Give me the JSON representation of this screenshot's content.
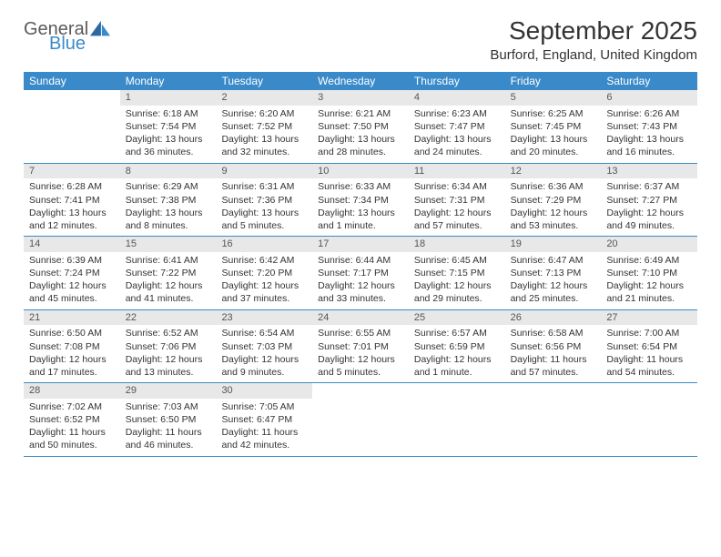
{
  "logo": {
    "word1": "General",
    "word2": "Blue"
  },
  "title": "September 2025",
  "location": "Burford, England, United Kingdom",
  "colors": {
    "header_bar": "#3a8ac9",
    "daynum_bg": "#e8e8e8",
    "text": "#333333",
    "logo_gray": "#5a5a5a",
    "logo_blue": "#3a8ac9"
  },
  "weekdays": [
    "Sunday",
    "Monday",
    "Tuesday",
    "Wednesday",
    "Thursday",
    "Friday",
    "Saturday"
  ],
  "weeks": [
    [
      {
        "n": "",
        "sr": "",
        "ss": "",
        "dl": ""
      },
      {
        "n": "1",
        "sr": "Sunrise: 6:18 AM",
        "ss": "Sunset: 7:54 PM",
        "dl": "Daylight: 13 hours and 36 minutes."
      },
      {
        "n": "2",
        "sr": "Sunrise: 6:20 AM",
        "ss": "Sunset: 7:52 PM",
        "dl": "Daylight: 13 hours and 32 minutes."
      },
      {
        "n": "3",
        "sr": "Sunrise: 6:21 AM",
        "ss": "Sunset: 7:50 PM",
        "dl": "Daylight: 13 hours and 28 minutes."
      },
      {
        "n": "4",
        "sr": "Sunrise: 6:23 AM",
        "ss": "Sunset: 7:47 PM",
        "dl": "Daylight: 13 hours and 24 minutes."
      },
      {
        "n": "5",
        "sr": "Sunrise: 6:25 AM",
        "ss": "Sunset: 7:45 PM",
        "dl": "Daylight: 13 hours and 20 minutes."
      },
      {
        "n": "6",
        "sr": "Sunrise: 6:26 AM",
        "ss": "Sunset: 7:43 PM",
        "dl": "Daylight: 13 hours and 16 minutes."
      }
    ],
    [
      {
        "n": "7",
        "sr": "Sunrise: 6:28 AM",
        "ss": "Sunset: 7:41 PM",
        "dl": "Daylight: 13 hours and 12 minutes."
      },
      {
        "n": "8",
        "sr": "Sunrise: 6:29 AM",
        "ss": "Sunset: 7:38 PM",
        "dl": "Daylight: 13 hours and 8 minutes."
      },
      {
        "n": "9",
        "sr": "Sunrise: 6:31 AM",
        "ss": "Sunset: 7:36 PM",
        "dl": "Daylight: 13 hours and 5 minutes."
      },
      {
        "n": "10",
        "sr": "Sunrise: 6:33 AM",
        "ss": "Sunset: 7:34 PM",
        "dl": "Daylight: 13 hours and 1 minute."
      },
      {
        "n": "11",
        "sr": "Sunrise: 6:34 AM",
        "ss": "Sunset: 7:31 PM",
        "dl": "Daylight: 12 hours and 57 minutes."
      },
      {
        "n": "12",
        "sr": "Sunrise: 6:36 AM",
        "ss": "Sunset: 7:29 PM",
        "dl": "Daylight: 12 hours and 53 minutes."
      },
      {
        "n": "13",
        "sr": "Sunrise: 6:37 AM",
        "ss": "Sunset: 7:27 PM",
        "dl": "Daylight: 12 hours and 49 minutes."
      }
    ],
    [
      {
        "n": "14",
        "sr": "Sunrise: 6:39 AM",
        "ss": "Sunset: 7:24 PM",
        "dl": "Daylight: 12 hours and 45 minutes."
      },
      {
        "n": "15",
        "sr": "Sunrise: 6:41 AM",
        "ss": "Sunset: 7:22 PM",
        "dl": "Daylight: 12 hours and 41 minutes."
      },
      {
        "n": "16",
        "sr": "Sunrise: 6:42 AM",
        "ss": "Sunset: 7:20 PM",
        "dl": "Daylight: 12 hours and 37 minutes."
      },
      {
        "n": "17",
        "sr": "Sunrise: 6:44 AM",
        "ss": "Sunset: 7:17 PM",
        "dl": "Daylight: 12 hours and 33 minutes."
      },
      {
        "n": "18",
        "sr": "Sunrise: 6:45 AM",
        "ss": "Sunset: 7:15 PM",
        "dl": "Daylight: 12 hours and 29 minutes."
      },
      {
        "n": "19",
        "sr": "Sunrise: 6:47 AM",
        "ss": "Sunset: 7:13 PM",
        "dl": "Daylight: 12 hours and 25 minutes."
      },
      {
        "n": "20",
        "sr": "Sunrise: 6:49 AM",
        "ss": "Sunset: 7:10 PM",
        "dl": "Daylight: 12 hours and 21 minutes."
      }
    ],
    [
      {
        "n": "21",
        "sr": "Sunrise: 6:50 AM",
        "ss": "Sunset: 7:08 PM",
        "dl": "Daylight: 12 hours and 17 minutes."
      },
      {
        "n": "22",
        "sr": "Sunrise: 6:52 AM",
        "ss": "Sunset: 7:06 PM",
        "dl": "Daylight: 12 hours and 13 minutes."
      },
      {
        "n": "23",
        "sr": "Sunrise: 6:54 AM",
        "ss": "Sunset: 7:03 PM",
        "dl": "Daylight: 12 hours and 9 minutes."
      },
      {
        "n": "24",
        "sr": "Sunrise: 6:55 AM",
        "ss": "Sunset: 7:01 PM",
        "dl": "Daylight: 12 hours and 5 minutes."
      },
      {
        "n": "25",
        "sr": "Sunrise: 6:57 AM",
        "ss": "Sunset: 6:59 PM",
        "dl": "Daylight: 12 hours and 1 minute."
      },
      {
        "n": "26",
        "sr": "Sunrise: 6:58 AM",
        "ss": "Sunset: 6:56 PM",
        "dl": "Daylight: 11 hours and 57 minutes."
      },
      {
        "n": "27",
        "sr": "Sunrise: 7:00 AM",
        "ss": "Sunset: 6:54 PM",
        "dl": "Daylight: 11 hours and 54 minutes."
      }
    ],
    [
      {
        "n": "28",
        "sr": "Sunrise: 7:02 AM",
        "ss": "Sunset: 6:52 PM",
        "dl": "Daylight: 11 hours and 50 minutes."
      },
      {
        "n": "29",
        "sr": "Sunrise: 7:03 AM",
        "ss": "Sunset: 6:50 PM",
        "dl": "Daylight: 11 hours and 46 minutes."
      },
      {
        "n": "30",
        "sr": "Sunrise: 7:05 AM",
        "ss": "Sunset: 6:47 PM",
        "dl": "Daylight: 11 hours and 42 minutes."
      },
      {
        "n": "",
        "sr": "",
        "ss": "",
        "dl": ""
      },
      {
        "n": "",
        "sr": "",
        "ss": "",
        "dl": ""
      },
      {
        "n": "",
        "sr": "",
        "ss": "",
        "dl": ""
      },
      {
        "n": "",
        "sr": "",
        "ss": "",
        "dl": ""
      }
    ]
  ]
}
